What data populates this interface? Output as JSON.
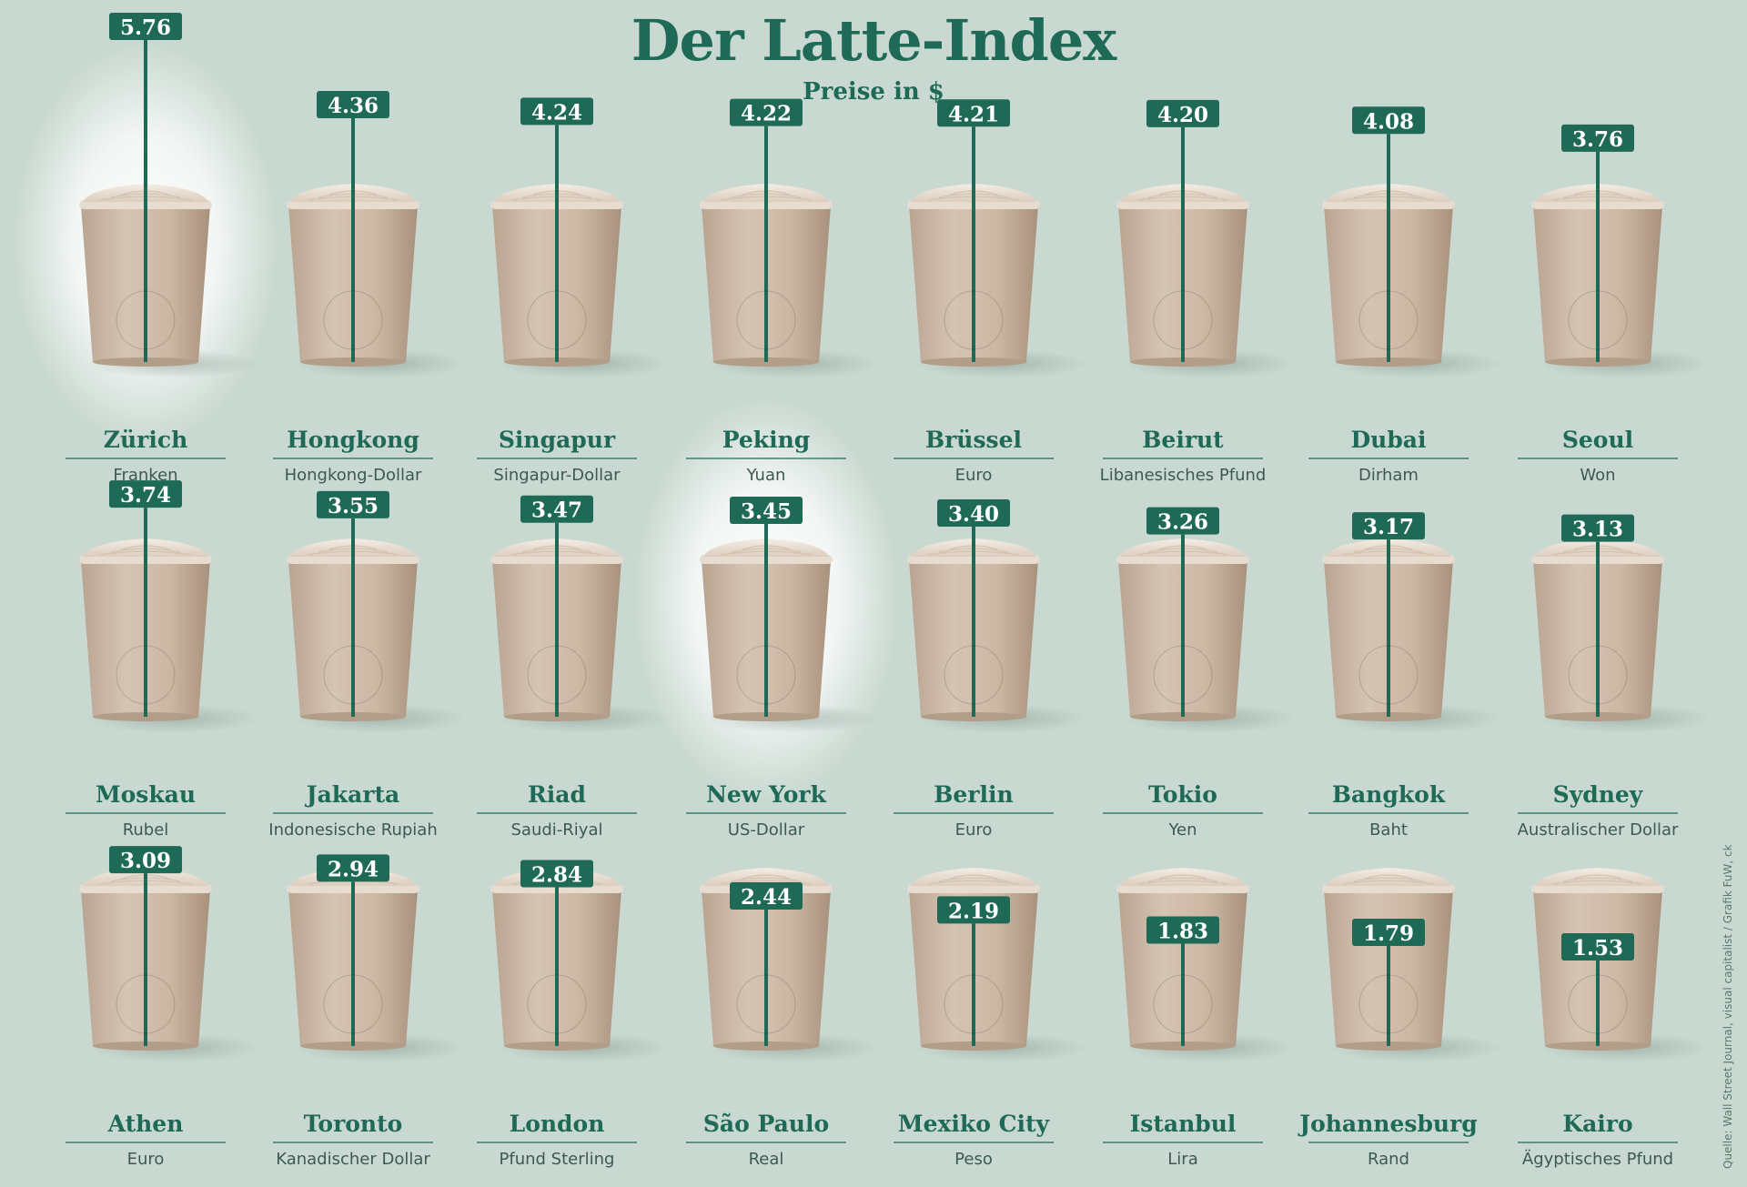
{
  "chart_data": {
    "type": "bar",
    "title": "Der Latte-Index",
    "subtitle": "Preise in $",
    "unit": "$",
    "highlight": [
      "Zürich",
      "New York"
    ],
    "categories": [
      "Zürich",
      "Hongkong",
      "Singapur",
      "Peking",
      "Brüssel",
      "Beirut",
      "Dubai",
      "Seoul",
      "Moskau",
      "Jakarta",
      "Riad",
      "New York",
      "Berlin",
      "Tokio",
      "Bangkok",
      "Sydney",
      "Athen",
      "Toronto",
      "London",
      "São Paulo",
      "Mexiko City",
      "Istanbul",
      "Johannesburg",
      "Kairo"
    ],
    "currencies": [
      "Franken",
      "Hongkong-Dollar",
      "Singapur-Dollar",
      "Yuan",
      "Euro",
      "Libanesisches Pfund",
      "Dirham",
      "Won",
      "Rubel",
      "Indonesische Rupiah",
      "Saudi-Riyal",
      "US-Dollar",
      "Euro",
      "Yen",
      "Baht",
      "Australischer Dollar",
      "Euro",
      "Kanadischer Dollar",
      "Pfund Sterling",
      "Real",
      "Peso",
      "Lira",
      "Rand",
      "Ägyptisches Pfund"
    ],
    "value_labels": [
      "5.76",
      "4.36",
      "4.24",
      "4.22",
      "4.21",
      "4.20",
      "4.08",
      "3.76",
      "3.74",
      "3.55",
      "3.47",
      "3.45",
      "3.40",
      "3.26",
      "3.17",
      "3.13",
      "3.09",
      "2.94",
      "2.84",
      "2.44",
      "2.19",
      "1.83",
      "1.79",
      "1.53"
    ],
    "values": [
      5.76,
      4.36,
      4.24,
      4.22,
      4.21,
      4.2,
      4.08,
      3.76,
      3.74,
      3.55,
      3.47,
      3.45,
      3.4,
      3.26,
      3.17,
      3.13,
      3.09,
      2.94,
      2.84,
      2.44,
      2.19,
      1.83,
      1.79,
      1.53
    ],
    "flags": [
      "flag-switzerland",
      "flag-hong-kong",
      "flag-singapore",
      "flag-china",
      "flag-belgium",
      "flag-lebanon",
      "flag-uae",
      "flag-south-korea",
      "flag-russia",
      "flag-indonesia",
      "flag-saudi-arabia",
      "flag-usa",
      "flag-germany",
      "flag-japan",
      "flag-thailand",
      "flag-australia",
      "flag-greece",
      "flag-canada",
      "flag-uk",
      "flag-brazil",
      "flag-mexico",
      "flag-turkey",
      "flag-south-africa",
      "flag-egypt"
    ]
  },
  "source": "Quelle: Wall Street Journal, visual capitalist / Grafik FuW, ck",
  "colors": {
    "background": "#c9d9d1",
    "accent": "#1f6a57",
    "cup": "#cdb9a5",
    "foam": "#ece3d8",
    "text": "#1f6a57",
    "currency_text": "#3d5a50"
  }
}
